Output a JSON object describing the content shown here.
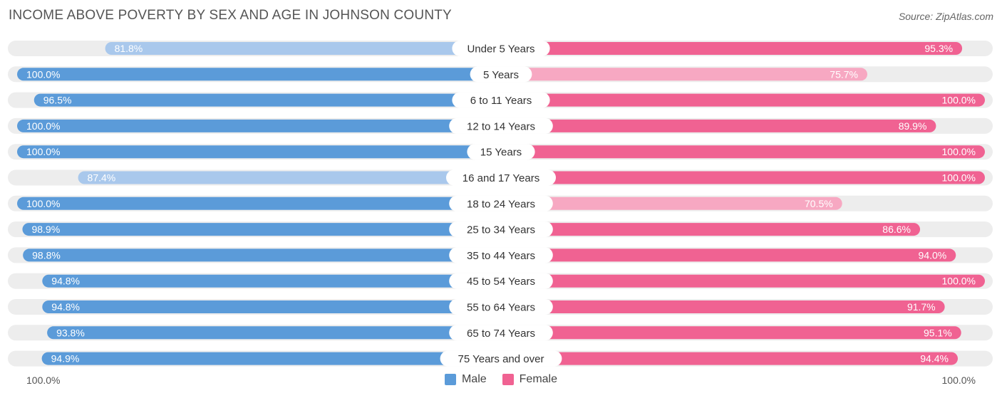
{
  "header": {
    "title": "INCOME ABOVE POVERTY BY SEX AND AGE IN JOHNSON COUNTY",
    "source": "Source: ZipAtlas.com"
  },
  "colors": {
    "male_strong": "#5b9bd9",
    "male_light": "#a9c8ec",
    "female_strong": "#f06292",
    "female_light": "#f7a8c2",
    "track": "#ededed"
  },
  "axis": {
    "left_label": "100.0%",
    "right_label": "100.0%"
  },
  "legend": {
    "male": "Male",
    "female": "Female"
  },
  "chart_data": {
    "type": "bar",
    "orientation": "horizontal-diverging",
    "title": "INCOME ABOVE POVERTY BY SEX AND AGE IN JOHNSON COUNTY",
    "xlim": [
      0,
      100
    ],
    "categories": [
      "Under 5 Years",
      "5 Years",
      "6 to 11 Years",
      "12 to 14 Years",
      "15 Years",
      "16 and 17 Years",
      "18 to 24 Years",
      "25 to 34 Years",
      "35 to 44 Years",
      "45 to 54 Years",
      "55 to 64 Years",
      "65 to 74 Years",
      "75 Years and over"
    ],
    "series": [
      {
        "name": "Male",
        "values": [
          81.8,
          100.0,
          96.5,
          100.0,
          100.0,
          87.4,
          100.0,
          98.9,
          98.8,
          94.8,
          94.8,
          93.8,
          94.9
        ],
        "labels": [
          "81.8%",
          "100.0%",
          "96.5%",
          "100.0%",
          "100.0%",
          "87.4%",
          "100.0%",
          "98.9%",
          "98.8%",
          "94.8%",
          "94.8%",
          "93.8%",
          "94.9%"
        ]
      },
      {
        "name": "Female",
        "values": [
          95.3,
          75.7,
          100.0,
          89.9,
          100.0,
          100.0,
          70.5,
          86.6,
          94.0,
          100.0,
          91.7,
          95.1,
          94.4
        ],
        "labels": [
          "95.3%",
          "75.7%",
          "100.0%",
          "89.9%",
          "100.0%",
          "100.0%",
          "70.5%",
          "86.6%",
          "94.0%",
          "100.0%",
          "91.7%",
          "95.1%",
          "94.4%"
        ]
      }
    ]
  }
}
